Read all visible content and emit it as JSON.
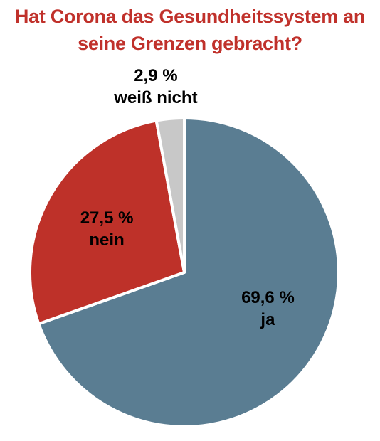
{
  "title_lines": [
    "Hat Corona das Gesundheitssystem an",
    "seine Grenzen gebracht?"
  ],
  "colors": {
    "title": "#c0312b",
    "ja": "#5a7d92",
    "nein": "#be3129",
    "weiss_nicht": "#c8c8c8",
    "slice_border": "#ffffff"
  },
  "chart_data": {
    "type": "pie",
    "title": "Hat Corona das Gesundheitssystem an seine Grenzen gebracht?",
    "slices": [
      {
        "label": "ja",
        "value": 69.6,
        "value_text": "69,6 %",
        "color": "#5a7d92"
      },
      {
        "label": "nein",
        "value": 27.5,
        "value_text": "27,5 %",
        "color": "#be3129"
      },
      {
        "label": "weiß nicht",
        "value": 2.9,
        "value_text": "2,9 %",
        "color": "#c8c8c8"
      }
    ],
    "start": "12 o'clock",
    "direction": "clockwise"
  }
}
